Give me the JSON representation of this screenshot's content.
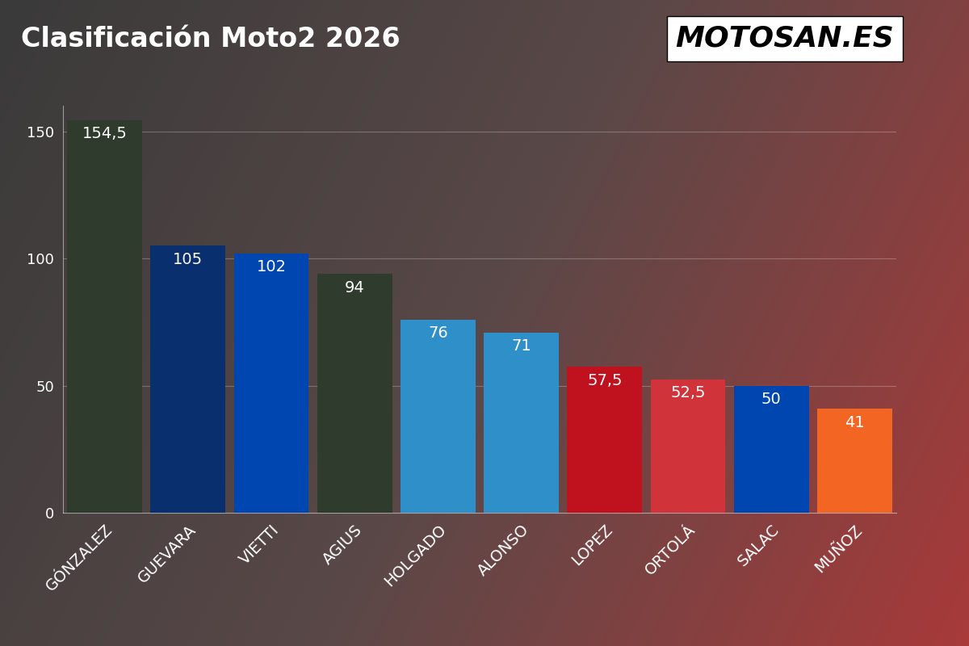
{
  "chart_data": {
    "type": "bar",
    "title": "Clasificación Moto2 2026",
    "annotations": [
      "MOTOSAN.ES"
    ],
    "categories": [
      "GÓNZALEZ",
      "GUEVARA",
      "VIETTI",
      "AGIUS",
      "HOLGADO",
      "ALONSO",
      "LOPEZ",
      "ORTOLÁ",
      "SALAC",
      "MUÑOZ"
    ],
    "values": [
      154.5,
      105,
      102,
      94,
      76,
      71,
      57.5,
      52.5,
      50,
      41
    ],
    "value_labels": [
      "154,5",
      "105",
      "102",
      "94",
      "76",
      "71",
      "57,5",
      "52,5",
      "50",
      "41"
    ],
    "colors": [
      "#2f3b2c",
      "#0a2f6e",
      "#0046b0",
      "#2f3b2c",
      "#2f8fc8",
      "#2f8fc8",
      "#c0111f",
      "#d0333a",
      "#0046b0",
      "#f26522"
    ],
    "ylim": [
      0,
      160
    ],
    "yticks": [
      0,
      50,
      100,
      150
    ],
    "grid": true,
    "data_labels": true
  }
}
